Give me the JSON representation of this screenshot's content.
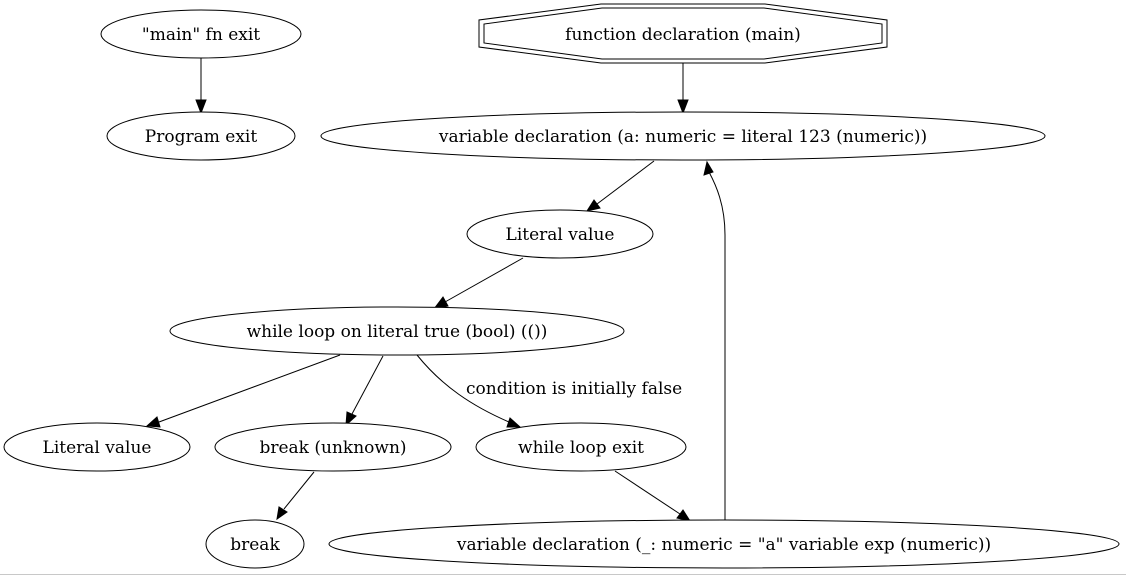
{
  "graph": {
    "nodes": {
      "main_fn_exit": "\"main\" fn exit",
      "program_exit": "Program exit",
      "function_declaration": "function declaration (main)",
      "variable_declaration_a": "variable declaration (a: numeric = literal 123 (numeric))",
      "literal_value_1": "Literal value",
      "while_loop": "while loop on literal true (bool) (())",
      "literal_value_2": "Literal value",
      "break_unknown": "break (unknown)",
      "while_loop_exit": "while loop exit",
      "break": "break",
      "variable_declaration_underscore": "variable declaration (_: numeric = \"a\" variable exp (numeric))"
    },
    "edges": [
      {
        "from": "main_fn_exit",
        "to": "program_exit",
        "label": ""
      },
      {
        "from": "function_declaration",
        "to": "variable_declaration_a",
        "label": ""
      },
      {
        "from": "variable_declaration_a",
        "to": "literal_value_1",
        "label": ""
      },
      {
        "from": "literal_value_1",
        "to": "while_loop",
        "label": ""
      },
      {
        "from": "while_loop",
        "to": "literal_value_2",
        "label": ""
      },
      {
        "from": "while_loop",
        "to": "break_unknown",
        "label": ""
      },
      {
        "from": "while_loop",
        "to": "while_loop_exit",
        "label": "condition is initially false"
      },
      {
        "from": "break_unknown",
        "to": "break",
        "label": ""
      },
      {
        "from": "while_loop_exit",
        "to": "variable_declaration_underscore",
        "label": ""
      },
      {
        "from": "variable_declaration_underscore",
        "to": "variable_declaration_a",
        "label": ""
      }
    ]
  }
}
